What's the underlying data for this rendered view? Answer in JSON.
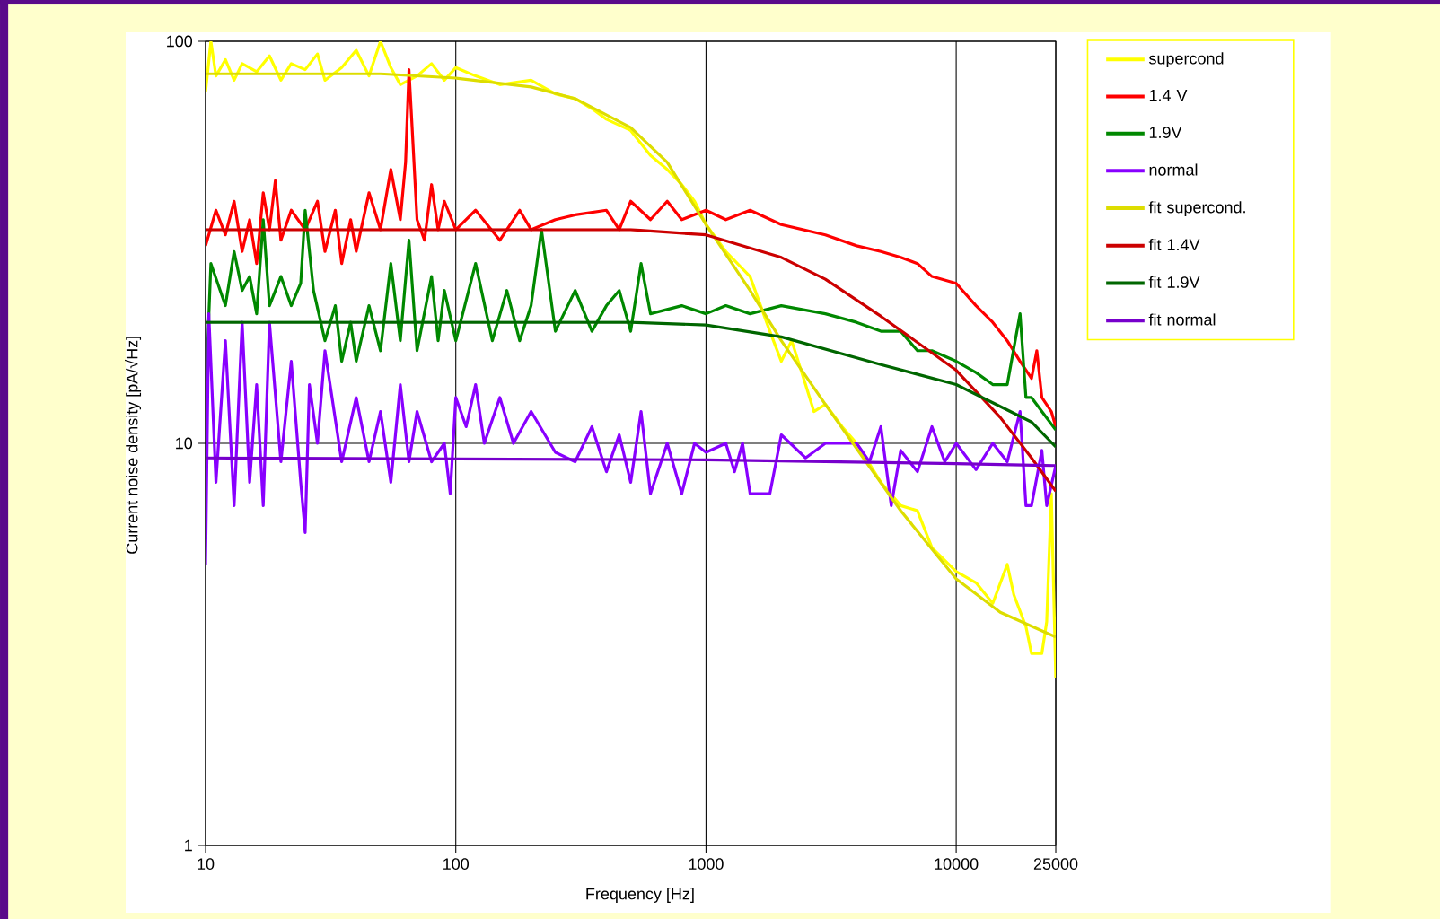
{
  "chart_data": {
    "type": "line",
    "xlabel": "Frequency [Hz]",
    "ylabel": "Current noise density [pA/√Hz]",
    "log": "xy",
    "grid": true,
    "legend": "right",
    "marker": "none",
    "line_style": "solid",
    "xlim": [
      10,
      25000
    ],
    "ylim": [
      1,
      100
    ],
    "xticks": [
      10,
      100,
      1000,
      10000,
      25000
    ],
    "yticks": [
      1,
      10,
      100
    ],
    "series": [
      {
        "name": "supercond",
        "color": "#ffff00",
        "x": [
          10,
          10.5,
          11,
          12,
          13,
          14,
          16,
          18,
          20,
          22,
          25,
          28,
          30,
          35,
          40,
          45,
          50,
          55,
          60,
          70,
          80,
          90,
          100,
          120,
          150,
          200,
          250,
          300,
          350,
          400,
          500,
          600,
          700,
          800,
          900,
          1000,
          1200,
          1500,
          1800,
          2000,
          2200,
          2500,
          2700,
          3000,
          3500,
          4000,
          5000,
          6000,
          7000,
          8000,
          10000,
          12000,
          14000,
          16000,
          17000,
          19000,
          20000,
          22000,
          23000,
          24000,
          25000
        ],
        "values": [
          75,
          100,
          82,
          90,
          80,
          88,
          84,
          92,
          80,
          88,
          85,
          93,
          80,
          86,
          95,
          82,
          100,
          86,
          78,
          82,
          88,
          80,
          86,
          82,
          78,
          80,
          74,
          72,
          68,
          64,
          60,
          52,
          48,
          44,
          40,
          35,
          30,
          26,
          19,
          16,
          18,
          14,
          12,
          12.5,
          11,
          10,
          8,
          7,
          6.8,
          5.5,
          4.8,
          4.5,
          4,
          5,
          4.2,
          3.5,
          3,
          3,
          3.6,
          7.5,
          2.6
        ]
      },
      {
        "name": "1.4 V",
        "color": "#ff0000",
        "x": [
          10,
          11,
          12,
          13,
          14,
          15,
          16,
          17,
          18,
          19,
          20,
          22,
          25,
          28,
          30,
          33,
          35,
          38,
          40,
          45,
          50,
          55,
          60,
          63,
          65,
          67,
          70,
          75,
          80,
          85,
          90,
          100,
          120,
          150,
          180,
          200,
          250,
          300,
          400,
          450,
          500,
          600,
          700,
          800,
          1000,
          1200,
          1500,
          2000,
          3000,
          4000,
          5000,
          6000,
          7000,
          8000,
          10000,
          12000,
          14000,
          16000,
          18000,
          20000,
          21000,
          22000,
          24000,
          25000
        ],
        "values": [
          31,
          38,
          33,
          40,
          30,
          36,
          28,
          42,
          34,
          45,
          32,
          38,
          34,
          40,
          30,
          38,
          28,
          36,
          30,
          42,
          34,
          48,
          36,
          50,
          85,
          60,
          36,
          32,
          44,
          34,
          40,
          34,
          38,
          32,
          38,
          34,
          36,
          37,
          38,
          34,
          40,
          36,
          40,
          36,
          38,
          36,
          38,
          35,
          33,
          31,
          30,
          29,
          28,
          26,
          25,
          22,
          20,
          18,
          16,
          14.5,
          17,
          13,
          12,
          11
        ]
      },
      {
        "name": "1.9V",
        "color": "#008800",
        "x": [
          10,
          10.5,
          12,
          13,
          14,
          15,
          16,
          17,
          18,
          20,
          22,
          24,
          25,
          27,
          30,
          33,
          35,
          38,
          40,
          45,
          50,
          55,
          60,
          65,
          70,
          80,
          85,
          90,
          100,
          120,
          140,
          160,
          180,
          200,
          220,
          250,
          300,
          350,
          400,
          450,
          500,
          550,
          600,
          800,
          1000,
          1200,
          1500,
          2000,
          3000,
          4000,
          5000,
          6000,
          7000,
          8000,
          10000,
          12000,
          14000,
          16000,
          18000,
          19000,
          20000,
          22000,
          25000
        ],
        "values": [
          13,
          28,
          22,
          30,
          24,
          26,
          21,
          36,
          22,
          26,
          22,
          25,
          38,
          24,
          18,
          22,
          16,
          20,
          16,
          22,
          17,
          28,
          18,
          32,
          17,
          26,
          18,
          24,
          18,
          28,
          18,
          24,
          18,
          22,
          34,
          19,
          24,
          19,
          22,
          24,
          19,
          28,
          21,
          22,
          21,
          22,
          21,
          22,
          21,
          20,
          19,
          19,
          17,
          17,
          16,
          15,
          14,
          14,
          21,
          13,
          13,
          12,
          10.8
        ]
      },
      {
        "name": "normal",
        "color": "#8800ff",
        "x": [
          10,
          10.3,
          11,
          12,
          13,
          14,
          15,
          16,
          17,
          18,
          20,
          22,
          24,
          25,
          26,
          28,
          30,
          35,
          40,
          45,
          50,
          55,
          60,
          65,
          70,
          80,
          90,
          95,
          100,
          110,
          120,
          130,
          150,
          170,
          200,
          250,
          300,
          350,
          400,
          450,
          500,
          550,
          600,
          700,
          800,
          900,
          1000,
          1200,
          1300,
          1400,
          1500,
          1800,
          2000,
          2500,
          3000,
          4000,
          4500,
          5000,
          5500,
          6000,
          7000,
          8000,
          9000,
          10000,
          12000,
          14000,
          16000,
          18000,
          19000,
          20000,
          22000,
          23000,
          25000
        ],
        "values": [
          5,
          21,
          8,
          18,
          7,
          20,
          8,
          14,
          7,
          20,
          9,
          16,
          8,
          6,
          14,
          10,
          17,
          9,
          13,
          9,
          12,
          8,
          14,
          9,
          12,
          9,
          10,
          7.5,
          13,
          11,
          14,
          10,
          13,
          10,
          12,
          9.5,
          9,
          11,
          8.5,
          10.5,
          8,
          12,
          7.5,
          10,
          7.5,
          10,
          9.5,
          10,
          8.5,
          10,
          7.5,
          7.5,
          10.5,
          9.2,
          10,
          10,
          9,
          11,
          7,
          9.6,
          8.5,
          11,
          9,
          10,
          8.6,
          10,
          9,
          12,
          7,
          7,
          9.6,
          7,
          8.8
        ]
      },
      {
        "name": "fit supercond.",
        "color": "#dddd00",
        "x": [
          10,
          50,
          100,
          200,
          300,
          500,
          700,
          1000,
          1500,
          2000,
          3000,
          4000,
          6000,
          10000,
          15000,
          25000
        ],
        "values": [
          83,
          83,
          81,
          77,
          72,
          61,
          50,
          35,
          24,
          18,
          12.5,
          9.7,
          6.8,
          4.6,
          3.8,
          3.3
        ]
      },
      {
        "name": "fit 1.4V",
        "color": "#cc0000",
        "x": [
          10,
          100,
          500,
          1000,
          2000,
          3000,
          5000,
          10000,
          15000,
          20000,
          25000
        ],
        "values": [
          34,
          34,
          34,
          33,
          29,
          25.6,
          20.7,
          15.2,
          11.6,
          9.2,
          7.6
        ]
      },
      {
        "name": "fit 1.9V",
        "color": "#006600",
        "x": [
          10,
          100,
          500,
          1000,
          2000,
          5000,
          10000,
          20000,
          25000
        ],
        "values": [
          20,
          20,
          20,
          19.7,
          18.4,
          15.7,
          14,
          11.3,
          9.8
        ]
      },
      {
        "name": "fit normal",
        "color": "#7700cc",
        "x": [
          10,
          1000,
          10000,
          25000
        ],
        "values": [
          9.2,
          9.1,
          8.9,
          8.8
        ]
      }
    ]
  }
}
